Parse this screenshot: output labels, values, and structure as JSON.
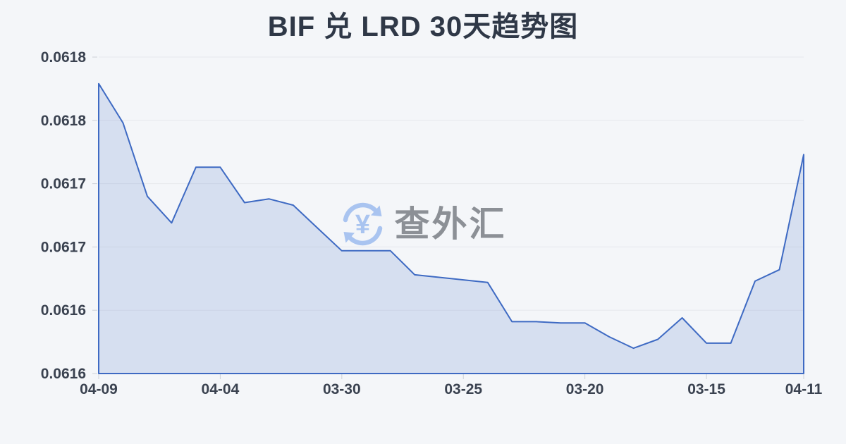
{
  "colors": {
    "background": "#f4f6f9",
    "line": "#3e6ac3",
    "fill": "#3e6ac3",
    "fill_opacity": 0.16,
    "grid": "#e6e8ed",
    "tick": "#ccd0d6",
    "label": "#3a4250",
    "title": "#2f3847",
    "watermark_text": "#8c9096",
    "watermark_icon": "#a9c4f0"
  },
  "watermark": {
    "text": "查外汇",
    "currency_symbol": "¥"
  },
  "chart_data": {
    "type": "area",
    "title": "BIF 兑 LRD 30天趋势图",
    "grid": true,
    "legend": false,
    "x_axis": {
      "ticks": [
        {
          "index": 0,
          "label": "04-09"
        },
        {
          "index": 5,
          "label": "04-04"
        },
        {
          "index": 10,
          "label": "03-30"
        },
        {
          "index": 15,
          "label": "03-25"
        },
        {
          "index": 20,
          "label": "03-20"
        },
        {
          "index": 25,
          "label": "03-15"
        },
        {
          "index": 29,
          "label": "04-11"
        }
      ]
    },
    "y_axis": {
      "min": 0.06155,
      "max": 0.0618,
      "ticks": [
        {
          "value": 0.0618,
          "label": "0.0618"
        },
        {
          "value": 0.06175,
          "label": "0.0618"
        },
        {
          "value": 0.0617,
          "label": "0.0617"
        },
        {
          "value": 0.06165,
          "label": "0.0617"
        },
        {
          "value": 0.0616,
          "label": "0.0616"
        },
        {
          "value": 0.06155,
          "label": "0.0616"
        }
      ]
    },
    "values": [
      0.061779,
      0.061748,
      0.06169,
      0.061669,
      0.061713,
      0.061713,
      0.061685,
      0.061688,
      0.061683,
      0.061665,
      0.061647,
      0.061647,
      0.061647,
      0.061628,
      0.061626,
      0.061624,
      0.061622,
      0.061591,
      0.061591,
      0.06159,
      0.06159,
      0.061579,
      0.06157,
      0.061577,
      0.061594,
      0.061574,
      0.061574,
      0.061623,
      0.061632,
      0.061723
    ]
  }
}
